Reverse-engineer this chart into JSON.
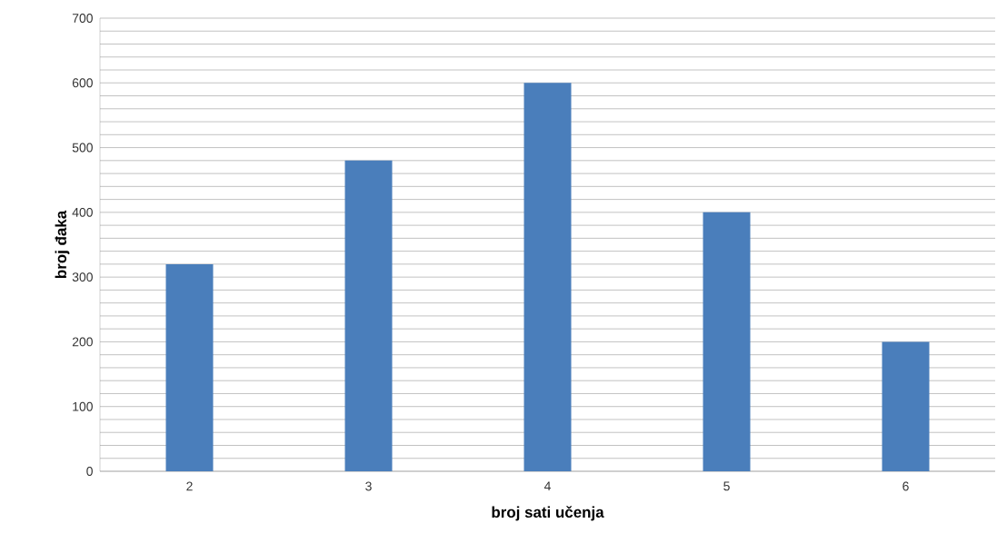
{
  "chart_data": {
    "type": "bar",
    "xlabel": "broj sati učenja",
    "ylabel": "broj đaka",
    "categories": [
      "2",
      "3",
      "4",
      "5",
      "6"
    ],
    "values": [
      320,
      480,
      600,
      400,
      200
    ],
    "color": "#4a7ebb",
    "ylim": [
      0,
      700
    ],
    "yticks": [
      0,
      {
        "value": 20,
        "label": null
      },
      {
        "value": 40,
        "label": null
      },
      {
        "value": 60,
        "label": null
      },
      {
        "value": 80,
        "label": null
      },
      100,
      {
        "value": 120,
        "label": null
      },
      {
        "value": 140,
        "label": null
      },
      {
        "value": 160,
        "label": null
      },
      {
        "value": 180,
        "label": null
      },
      200,
      {
        "value": 220,
        "label": null
      },
      {
        "value": 240,
        "label": null
      },
      {
        "value": 260,
        "label": null
      },
      {
        "value": 280,
        "label": null
      },
      300,
      {
        "value": 320,
        "label": null
      },
      {
        "value": 340,
        "label": null
      },
      {
        "value": 360,
        "label": null
      },
      {
        "value": 380,
        "label": null
      },
      400,
      {
        "value": 420,
        "label": null
      },
      {
        "value": 440,
        "label": null
      },
      {
        "value": 460,
        "label": null
      },
      {
        "value": 480,
        "label": null
      },
      500,
      {
        "value": 520,
        "label": null
      },
      {
        "value": 540,
        "label": null
      },
      {
        "value": 560,
        "label": null
      },
      {
        "value": 580,
        "label": null
      },
      600,
      {
        "value": 620,
        "label": null
      },
      {
        "value": 640,
        "label": null
      },
      {
        "value": 660,
        "label": null
      },
      {
        "value": 680,
        "label": null
      },
      700
    ],
    "grid": "y"
  }
}
